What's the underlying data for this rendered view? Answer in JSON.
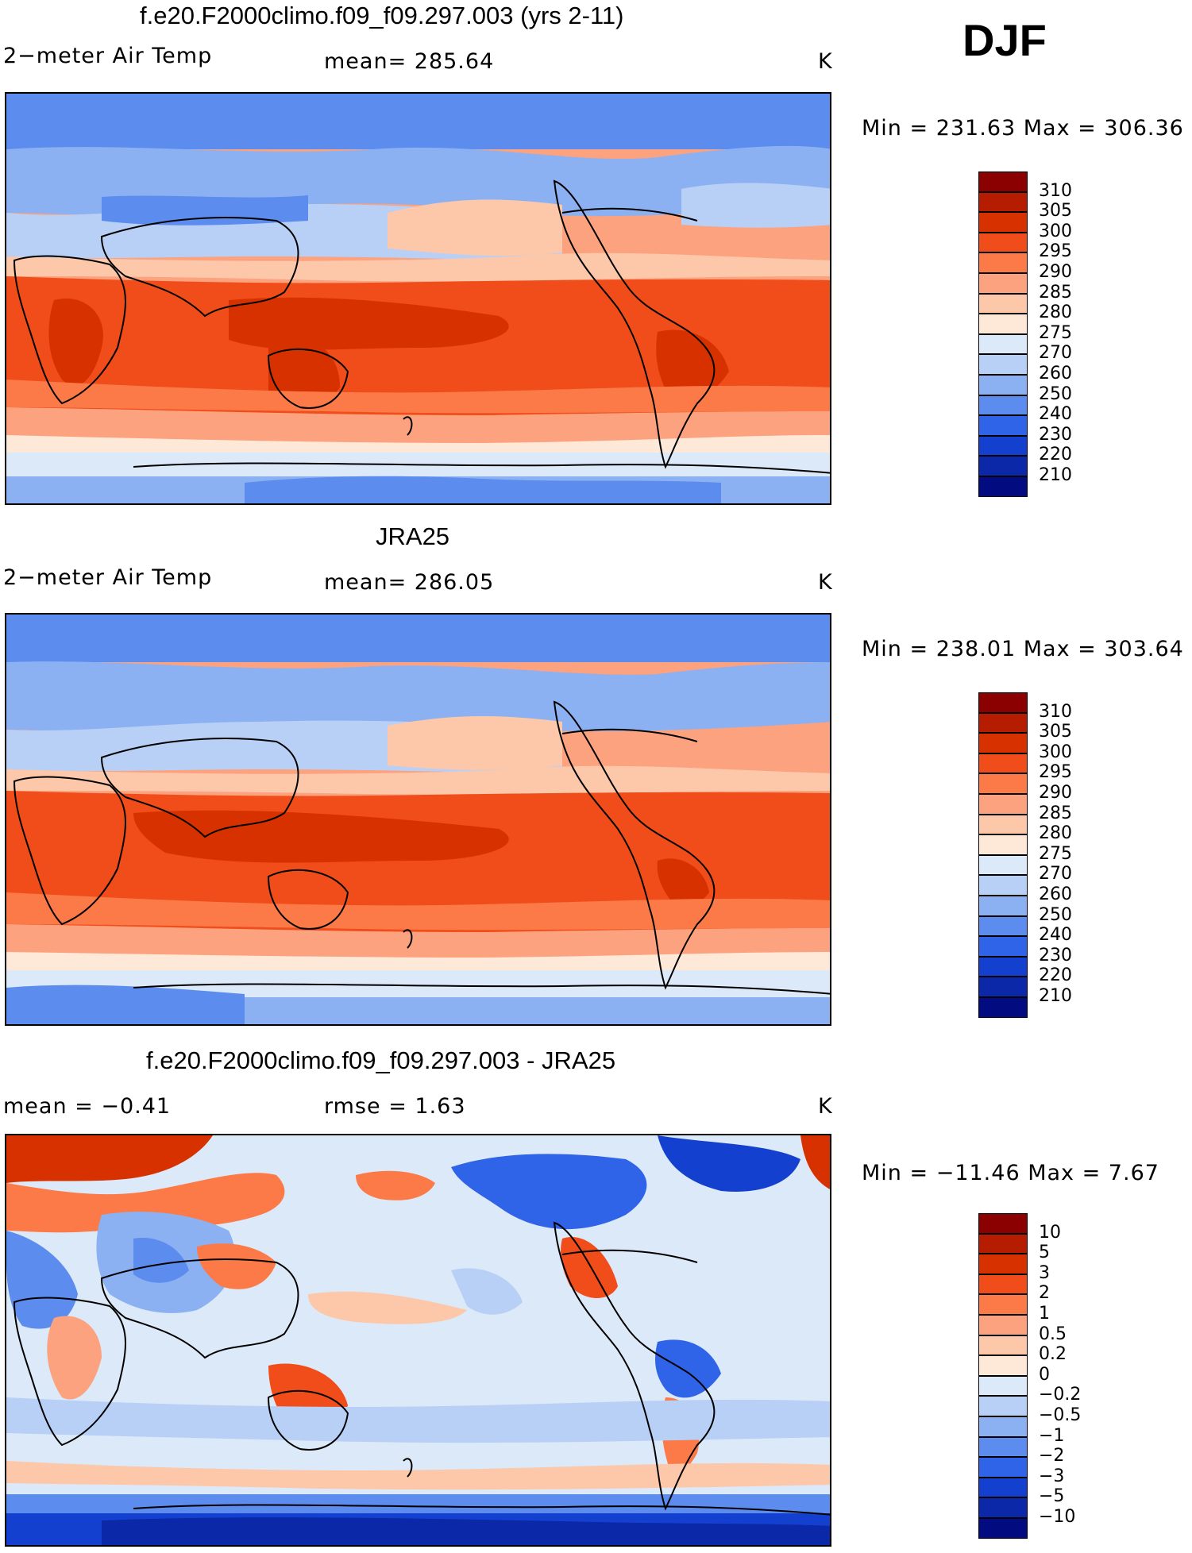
{
  "header": {
    "season": "DJF"
  },
  "panels": [
    {
      "title": "f.e20.F2000climo.f09_f09.297.003 (yrs 2-11)",
      "left_label": "2−meter Air Temp",
      "mid_label": "mean=  285.64",
      "units": "K",
      "minmax": "Min  =  231.63  Max  =  306.36",
      "colorbar_labels": [
        "310",
        "305",
        "300",
        "295",
        "290",
        "285",
        "280",
        "275",
        "270",
        "260",
        "250",
        "240",
        "230",
        "220",
        "210"
      ],
      "colorbar_colors": [
        "#8b0000",
        "#b51c00",
        "#d83100",
        "#f04d1a",
        "#fb7a47",
        "#fca27e",
        "#fdc7aa",
        "#fee8d8",
        "#dce9f8",
        "#b8d0f6",
        "#8cb1f2",
        "#5b8cee",
        "#2f63e8",
        "#1440d0",
        "#0a28a8",
        "#020c80"
      ]
    },
    {
      "title": "JRA25",
      "left_label": "2−meter Air Temp",
      "mid_label": "mean=  286.05",
      "units": "K",
      "minmax": "Min  =  238.01  Max  =  303.64",
      "colorbar_labels": [
        "310",
        "305",
        "300",
        "295",
        "290",
        "285",
        "280",
        "275",
        "270",
        "260",
        "250",
        "240",
        "230",
        "220",
        "210"
      ],
      "colorbar_colors": [
        "#8b0000",
        "#b51c00",
        "#d83100",
        "#f04d1a",
        "#fb7a47",
        "#fca27e",
        "#fdc7aa",
        "#fee8d8",
        "#dce9f8",
        "#b8d0f6",
        "#8cb1f2",
        "#5b8cee",
        "#2f63e8",
        "#1440d0",
        "#0a28a8",
        "#020c80"
      ]
    },
    {
      "title": "f.e20.F2000climo.f09_f09.297.003 - JRA25",
      "left_label": "mean  =    −0.41",
      "mid_label": "rmse  =     1.63",
      "units": "K",
      "minmax": "Min  = −11.46  Max  =     7.67",
      "colorbar_labels": [
        "10",
        "5",
        "3",
        "2",
        "1",
        "0.5",
        "0.2",
        "0",
        "−0.2",
        "−0.5",
        "−1",
        "−2",
        "−3",
        "−5",
        "−10"
      ],
      "colorbar_colors": [
        "#8b0000",
        "#b51c00",
        "#d83100",
        "#f04d1a",
        "#fb7a47",
        "#fca27e",
        "#fdc7aa",
        "#fee8d8",
        "#dce9f8",
        "#b8d0f6",
        "#8cb1f2",
        "#5b8cee",
        "#2f63e8",
        "#1440d0",
        "#0a28a8",
        "#020c80"
      ]
    }
  ]
}
